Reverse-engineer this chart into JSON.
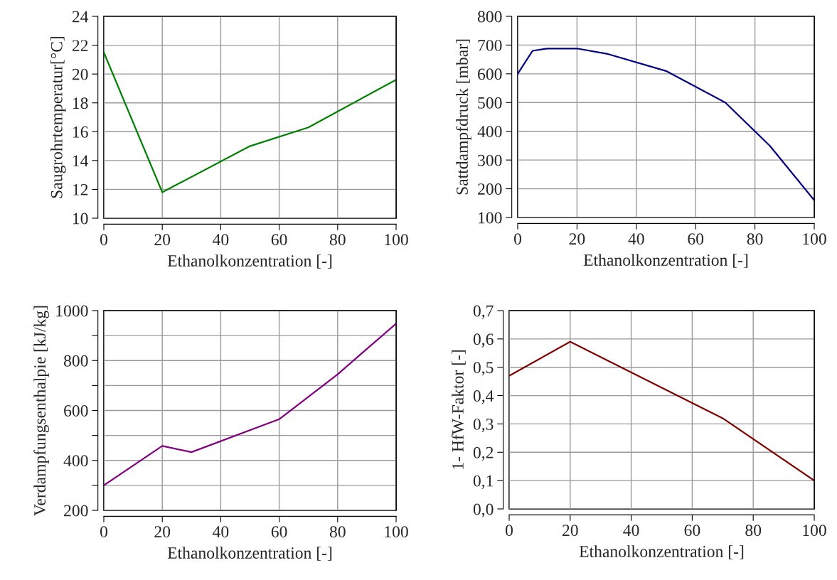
{
  "chart_data": [
    {
      "type": "line",
      "xlabel": "Ethanolkonzentration [-]",
      "ylabel": "Saugrohrtemperatur[°C]",
      "x": [
        0,
        20,
        50,
        70,
        100
      ],
      "series": [
        {
          "color": "#008000",
          "values": [
            21.5,
            11.8,
            15.0,
            16.3,
            19.6
          ]
        }
      ],
      "xlim": [
        0,
        100
      ],
      "xticks": [
        0,
        20,
        40,
        60,
        80,
        100
      ],
      "ylim": [
        10,
        24
      ],
      "yticks": [
        10,
        12,
        14,
        16,
        18,
        20,
        22,
        24
      ],
      "grid": true
    },
    {
      "type": "line",
      "xlabel": "Ethanolkonzentration [-]",
      "ylabel": "Sattdampfdruck [mbar]",
      "x": [
        0,
        5,
        10,
        20,
        30,
        50,
        70,
        80,
        85,
        100
      ],
      "series": [
        {
          "color": "#000080",
          "values": [
            600,
            680,
            688,
            688,
            670,
            610,
            500,
            400,
            350,
            160
          ]
        }
      ],
      "xlim": [
        0,
        100
      ],
      "xticks": [
        0,
        20,
        40,
        60,
        80,
        100
      ],
      "ylim": [
        100,
        800
      ],
      "yticks": [
        100,
        200,
        300,
        400,
        500,
        600,
        700,
        800
      ],
      "grid": true
    },
    {
      "type": "line",
      "xlabel": "Ethanolkonzentration [-]",
      "ylabel": "Verdampfungsenthalpie [kJ/kg]",
      "x": [
        0,
        20,
        30,
        60,
        80,
        100
      ],
      "series": [
        {
          "color": "#800080",
          "values": [
            300,
            458,
            433,
            565,
            745,
            948
          ]
        }
      ],
      "xlim": [
        0,
        100
      ],
      "xticks": [
        0,
        20,
        40,
        60,
        80,
        100
      ],
      "ylim": [
        200,
        1000
      ],
      "yticks": [
        200,
        {
          "value": 300,
          "label": null
        },
        400,
        {
          "value": 500,
          "label": null
        },
        600,
        {
          "value": 700,
          "label": null
        },
        800,
        {
          "value": 900,
          "label": null
        },
        1000
      ],
      "grid": true
    },
    {
      "type": "line",
      "xlabel": "Ethanolkonzentration [-]",
      "ylabel": "1- HfW-Faktor [-]",
      "x": [
        0,
        20,
        70,
        100
      ],
      "series": [
        {
          "color": "#800000",
          "values": [
            0.47,
            0.59,
            0.32,
            0.1
          ]
        }
      ],
      "xlim": [
        0,
        100
      ],
      "xticks": [
        0,
        20,
        40,
        60,
        80,
        100
      ],
      "ylim": [
        0,
        0.7
      ],
      "yticks": [
        {
          "value": 0,
          "label": "0,0"
        },
        {
          "value": 0.1,
          "label": "0,1"
        },
        {
          "value": 0.2,
          "label": "0,2"
        },
        {
          "value": 0.3,
          "label": "0,3"
        },
        {
          "value": 0.4,
          "label": "0,4"
        },
        {
          "value": 0.5,
          "label": "0,5"
        },
        {
          "value": 0.6,
          "label": "0,6"
        },
        {
          "value": 0.7,
          "label": "0,7"
        }
      ],
      "grid": true
    }
  ]
}
